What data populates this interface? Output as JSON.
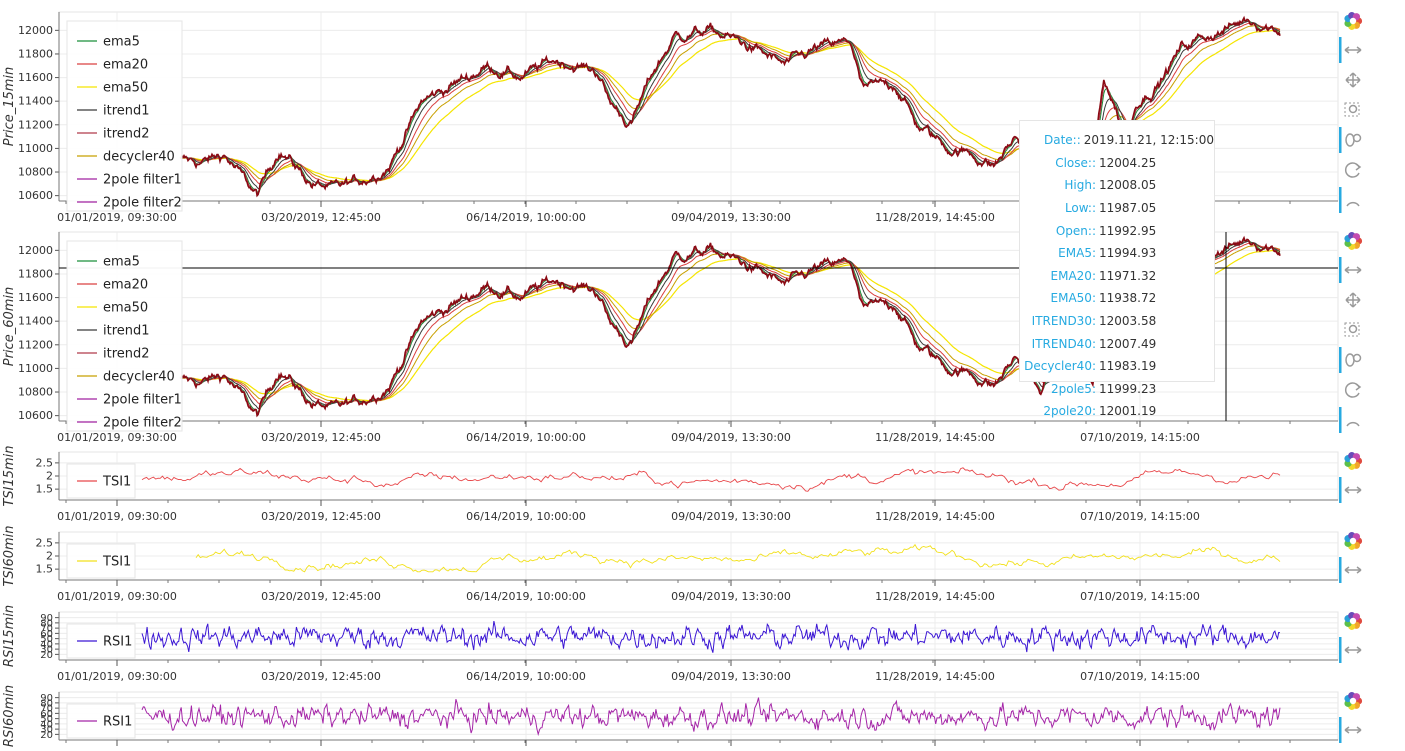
{
  "colors": {
    "ema5": "#1a8f3a",
    "ema20": "#d94040",
    "ema50": "#f5e500",
    "itrend1": "#3a3a3a",
    "itrend2": "#b03a4a",
    "decycler40": "#c8a000",
    "twopole1": "#a020a0",
    "price": "#8b0a14",
    "tsi15": "#e8474a",
    "tsi60": "#f2e11c",
    "rsi15": "#3b16d4",
    "rsi60": "#a526a8",
    "toolbar_accent": "#26aae1",
    "tooltip_key": "#26aae1"
  },
  "x_ticks": [
    "01/01/2019, 09:30:00",
    "03/20/2019, 12:45:00",
    "06/14/2019, 10:00:00",
    "09/04/2019, 13:30:00",
    "11/28/2019, 14:45:00",
    "07/10/2019, 14:15:00"
  ],
  "panels": {
    "price15": {
      "ylabel": "Price_15min",
      "yticks": [
        "12000",
        "11800",
        "11600",
        "11400",
        "11200",
        "11000",
        "10800",
        "10600"
      ],
      "legend": [
        "ema5",
        "ema20",
        "ema50",
        "itrend1",
        "itrend2",
        "decycler40",
        "2pole filter1",
        "2pole filter2"
      ]
    },
    "price60": {
      "ylabel": "Price_60min",
      "yticks": [
        "12000",
        "11800",
        "11600",
        "11400",
        "11200",
        "11000",
        "10800",
        "10600"
      ],
      "legend": [
        "ema5",
        "ema20",
        "ema50",
        "itrend1",
        "itrend2",
        "decycler40",
        "2pole filter1",
        "2pole filter2"
      ]
    },
    "tsi15": {
      "ylabel": "TSI15min",
      "yticks": [
        "2.5",
        "2",
        "1.5"
      ],
      "legend": [
        "TSI1"
      ]
    },
    "tsi60": {
      "ylabel": "TSI60min",
      "yticks": [
        "2.5",
        "2",
        "1.5"
      ],
      "legend": [
        "TSI1"
      ]
    },
    "rsi15": {
      "ylabel": "RSI15min",
      "yticks": [
        "90",
        "80",
        "70",
        "60",
        "50",
        "40",
        "30",
        "20"
      ],
      "legend": [
        "RSI1"
      ]
    },
    "rsi60": {
      "ylabel": "RSI60min",
      "yticks": [
        "90",
        "80",
        "70",
        "60",
        "50",
        "40",
        "30",
        "20"
      ],
      "legend": [
        "RSI1"
      ]
    }
  },
  "toolbar": {
    "logo": "bokeh-logo-icon",
    "tools": [
      "pan-x-icon",
      "pan-icon",
      "box-zoom-icon",
      "wheel-zoom-icon",
      "reset-icon",
      "save-icon"
    ]
  },
  "tooltip": {
    "rows": [
      {
        "key": "Date::",
        "value": "2019.11.21, 12:15:00"
      },
      {
        "key": "Close::",
        "value": "12004.25"
      },
      {
        "key": "High:",
        "value": "12008.05"
      },
      {
        "key": "Low::",
        "value": "11987.05"
      },
      {
        "key": "Open::",
        "value": "11992.95"
      },
      {
        "key": "EMA5:",
        "value": "11994.93"
      },
      {
        "key": "EMA20:",
        "value": "11971.32"
      },
      {
        "key": "EMA50:",
        "value": "11938.72"
      },
      {
        "key": "ITREND30:",
        "value": "12003.58"
      },
      {
        "key": "ITREND40:",
        "value": "12007.49"
      },
      {
        "key": "Decycler40:",
        "value": "11983.19"
      },
      {
        "key": "2pole5:",
        "value": "11999.23"
      },
      {
        "key": "2pole20:",
        "value": "12001.19"
      }
    ]
  },
  "chart_data": [
    {
      "type": "line",
      "ylabel": "Price_15min",
      "ylim": [
        10580,
        12130
      ],
      "x_tick_labels": [
        "01/01/2019, 09:30:00",
        "03/20/2019, 12:45:00",
        "06/14/2019, 10:00:00",
        "09/04/2019, 13:30:00",
        "11/28/2019, 14:45:00",
        "07/10/2019, 14:15:00"
      ],
      "anchors": [
        [
          0,
          10900
        ],
        [
          0.02,
          10880
        ],
        [
          0.04,
          10950
        ],
        [
          0.07,
          10600
        ],
        [
          0.09,
          11000
        ],
        [
          0.12,
          10700
        ],
        [
          0.14,
          10650
        ],
        [
          0.17,
          10750
        ],
        [
          0.19,
          10850
        ],
        [
          0.22,
          11400
        ],
        [
          0.25,
          11550
        ],
        [
          0.28,
          11700
        ],
        [
          0.31,
          11600
        ],
        [
          0.34,
          11750
        ],
        [
          0.36,
          11700
        ],
        [
          0.38,
          11650
        ],
        [
          0.39,
          11400
        ],
        [
          0.41,
          11200
        ],
        [
          0.43,
          11650
        ],
        [
          0.45,
          11950
        ],
        [
          0.48,
          12000
        ],
        [
          0.51,
          11900
        ],
        [
          0.53,
          11800
        ],
        [
          0.55,
          11700
        ],
        [
          0.58,
          11850
        ],
        [
          0.61,
          11900
        ],
        [
          0.62,
          11500
        ],
        [
          0.65,
          11550
        ],
        [
          0.67,
          11200
        ],
        [
          0.7,
          11000
        ],
        [
          0.72,
          10950
        ],
        [
          0.74,
          10850
        ],
        [
          0.76,
          11100
        ],
        [
          0.78,
          10800
        ],
        [
          0.8,
          11000
        ],
        [
          0.82,
          11050
        ],
        [
          0.83,
          10850
        ],
        [
          0.84,
          11600
        ],
        [
          0.86,
          11100
        ],
        [
          0.87,
          11400
        ],
        [
          0.89,
          11550
        ],
        [
          0.91,
          11850
        ],
        [
          0.93,
          11950
        ],
        [
          0.95,
          12000
        ],
        [
          0.97,
          12100
        ],
        [
          1.0,
          12000
        ]
      ],
      "series": [
        {
          "name": "ema5"
        },
        {
          "name": "ema20"
        },
        {
          "name": "ema50"
        },
        {
          "name": "itrend1"
        },
        {
          "name": "itrend2"
        },
        {
          "name": "decycler40"
        },
        {
          "name": "2pole filter1"
        },
        {
          "name": "2pole filter2"
        }
      ],
      "legend": "top-left",
      "grid": true
    },
    {
      "type": "line",
      "ylabel": "Price_60min",
      "ylim": [
        10580,
        12130
      ],
      "x_tick_labels": [
        "01/01/2019, 09:30:00",
        "03/20/2019, 12:45:00",
        "06/14/2019, 10:00:00",
        "09/04/2019, 13:30:00",
        "11/28/2019, 14:45:00",
        "07/10/2019, 14:15:00"
      ],
      "anchors": [
        [
          0,
          10900
        ],
        [
          0.02,
          10880
        ],
        [
          0.04,
          10950
        ],
        [
          0.07,
          10600
        ],
        [
          0.09,
          11000
        ],
        [
          0.12,
          10700
        ],
        [
          0.14,
          10650
        ],
        [
          0.17,
          10750
        ],
        [
          0.19,
          10850
        ],
        [
          0.22,
          11400
        ],
        [
          0.25,
          11550
        ],
        [
          0.28,
          11700
        ],
        [
          0.31,
          11600
        ],
        [
          0.34,
          11750
        ],
        [
          0.36,
          11700
        ],
        [
          0.38,
          11650
        ],
        [
          0.39,
          11400
        ],
        [
          0.41,
          11200
        ],
        [
          0.43,
          11650
        ],
        [
          0.45,
          11950
        ],
        [
          0.48,
          12000
        ],
        [
          0.51,
          11900
        ],
        [
          0.53,
          11800
        ],
        [
          0.55,
          11700
        ],
        [
          0.58,
          11850
        ],
        [
          0.61,
          11900
        ],
        [
          0.62,
          11500
        ],
        [
          0.65,
          11550
        ],
        [
          0.67,
          11200
        ],
        [
          0.7,
          11000
        ],
        [
          0.72,
          10950
        ],
        [
          0.74,
          10850
        ],
        [
          0.76,
          11100
        ],
        [
          0.78,
          10800
        ],
        [
          0.8,
          11000
        ],
        [
          0.82,
          11050
        ],
        [
          0.83,
          10850
        ],
        [
          0.84,
          11600
        ],
        [
          0.86,
          11100
        ],
        [
          0.87,
          11400
        ],
        [
          0.89,
          11550
        ],
        [
          0.91,
          11850
        ],
        [
          0.93,
          11950
        ],
        [
          0.95,
          12000
        ],
        [
          0.97,
          12100
        ],
        [
          1.0,
          12000
        ]
      ],
      "crosshair": {
        "y": 11850
      },
      "series": [
        {
          "name": "ema5"
        },
        {
          "name": "ema20"
        },
        {
          "name": "ema50"
        },
        {
          "name": "itrend1"
        },
        {
          "name": "itrend2"
        },
        {
          "name": "decycler40"
        },
        {
          "name": "2pole filter1"
        },
        {
          "name": "2pole filter2"
        }
      ],
      "legend": "top-left",
      "grid": true
    },
    {
      "type": "line",
      "ylabel": "TSI15min",
      "ylim": [
        1.2,
        2.8
      ],
      "series": [
        {
          "name": "TSI1",
          "range": [
            1.2,
            2.7
          ]
        }
      ],
      "legend": "left",
      "grid": true
    },
    {
      "type": "line",
      "ylabel": "TSI60min",
      "ylim": [
        1.2,
        2.8
      ],
      "series": [
        {
          "name": "TSI1",
          "range": [
            1.4,
            2.7
          ]
        }
      ],
      "legend": "left",
      "grid": true
    },
    {
      "type": "line",
      "ylabel": "RSI15min",
      "ylim": [
        15,
        95
      ],
      "series": [
        {
          "name": "RSI1",
          "range": [
            18,
            90
          ]
        }
      ],
      "legend": "left",
      "grid": true
    },
    {
      "type": "line",
      "ylabel": "RSI60min",
      "ylim": [
        15,
        95
      ],
      "series": [
        {
          "name": "RSI1",
          "range": [
            18,
            90
          ]
        }
      ],
      "legend": "left",
      "grid": true
    }
  ]
}
